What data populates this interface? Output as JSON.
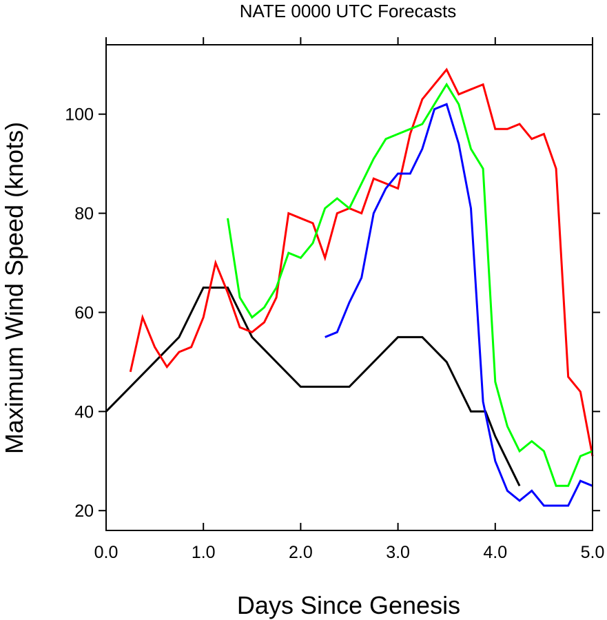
{
  "chart_data": {
    "type": "line",
    "title": "NATE 0000 UTC Forecasts",
    "xlabel": "Days Since Genesis",
    "ylabel": "Maximum Wind Speed (knots)",
    "xlim": [
      0,
      5
    ],
    "ylim": [
      16,
      114
    ],
    "grid": false,
    "x_ticks": [
      {
        "value": 0,
        "label": "0.0"
      },
      {
        "value": 1,
        "label": "1.0"
      },
      {
        "value": 2,
        "label": "2.0"
      },
      {
        "value": 3,
        "label": "3.0"
      },
      {
        "value": 4,
        "label": "4.0"
      },
      {
        "value": 5,
        "label": "5.0"
      }
    ],
    "y_ticks": [
      {
        "value": 20,
        "label": "20"
      },
      {
        "value": 40,
        "label": "40"
      },
      {
        "value": 60,
        "label": "60"
      },
      {
        "value": 80,
        "label": "80"
      },
      {
        "value": 100,
        "label": "100"
      }
    ],
    "series": [
      {
        "color": "#000000",
        "points": [
          [
            0,
            40
          ],
          [
            0.25,
            45
          ],
          [
            0.5,
            50
          ],
          [
            0.75,
            55
          ],
          [
            1.0,
            65
          ],
          [
            1.25,
            65
          ],
          [
            1.5,
            55
          ],
          [
            1.75,
            50
          ],
          [
            2.0,
            45
          ],
          [
            2.25,
            45
          ],
          [
            2.5,
            45
          ],
          [
            2.75,
            50
          ],
          [
            3.0,
            55
          ],
          [
            3.25,
            55
          ],
          [
            3.5,
            50
          ],
          [
            3.75,
            40
          ],
          [
            3.9,
            40
          ],
          [
            4.0,
            35
          ],
          [
            4.25,
            25
          ]
        ]
      },
      {
        "color": "#ff0000",
        "points": [
          [
            0.25,
            48
          ],
          [
            0.375,
            59
          ],
          [
            0.5,
            53
          ],
          [
            0.625,
            49
          ],
          [
            0.75,
            52
          ],
          [
            0.875,
            53
          ],
          [
            1.0,
            59
          ],
          [
            1.125,
            70
          ],
          [
            1.25,
            64
          ],
          [
            1.375,
            57
          ],
          [
            1.5,
            56
          ],
          [
            1.625,
            58
          ],
          [
            1.75,
            63
          ],
          [
            1.875,
            80
          ],
          [
            2.0,
            79
          ],
          [
            2.125,
            78
          ],
          [
            2.25,
            71
          ],
          [
            2.375,
            80
          ],
          [
            2.5,
            81
          ],
          [
            2.625,
            80
          ],
          [
            2.75,
            87
          ],
          [
            2.875,
            86
          ],
          [
            3.0,
            85
          ],
          [
            3.125,
            96
          ],
          [
            3.25,
            103
          ],
          [
            3.375,
            106
          ],
          [
            3.5,
            109
          ],
          [
            3.625,
            104
          ],
          [
            3.75,
            105
          ],
          [
            3.875,
            106
          ],
          [
            4.0,
            97
          ],
          [
            4.125,
            97
          ],
          [
            4.25,
            98
          ],
          [
            4.375,
            95
          ],
          [
            4.5,
            96
          ],
          [
            4.625,
            89
          ],
          [
            4.75,
            47
          ],
          [
            4.875,
            44
          ],
          [
            5.0,
            31
          ]
        ]
      },
      {
        "color": "#00ff00",
        "points": [
          [
            1.25,
            79
          ],
          [
            1.375,
            63
          ],
          [
            1.5,
            59
          ],
          [
            1.625,
            61
          ],
          [
            1.75,
            65
          ],
          [
            1.875,
            72
          ],
          [
            2.0,
            71
          ],
          [
            2.125,
            74
          ],
          [
            2.25,
            81
          ],
          [
            2.375,
            83
          ],
          [
            2.5,
            81
          ],
          [
            2.625,
            86
          ],
          [
            2.75,
            91
          ],
          [
            2.875,
            95
          ],
          [
            3.0,
            96
          ],
          [
            3.125,
            97
          ],
          [
            3.25,
            98
          ],
          [
            3.375,
            102
          ],
          [
            3.5,
            106
          ],
          [
            3.625,
            102
          ],
          [
            3.75,
            93
          ],
          [
            3.875,
            89
          ],
          [
            4.0,
            46
          ],
          [
            4.125,
            37
          ],
          [
            4.25,
            32
          ],
          [
            4.375,
            34
          ],
          [
            4.5,
            32
          ],
          [
            4.625,
            25
          ],
          [
            4.75,
            25
          ],
          [
            4.875,
            31
          ],
          [
            5.0,
            32
          ]
        ]
      },
      {
        "color": "#0000ff",
        "points": [
          [
            2.25,
            55
          ],
          [
            2.375,
            56
          ],
          [
            2.5,
            62
          ],
          [
            2.625,
            67
          ],
          [
            2.75,
            80
          ],
          [
            2.875,
            85
          ],
          [
            3.0,
            88
          ],
          [
            3.125,
            88
          ],
          [
            3.25,
            93
          ],
          [
            3.375,
            101
          ],
          [
            3.5,
            102
          ],
          [
            3.625,
            94
          ],
          [
            3.75,
            81
          ],
          [
            3.875,
            42
          ],
          [
            4.0,
            30
          ],
          [
            4.125,
            24
          ],
          [
            4.25,
            22
          ],
          [
            4.375,
            24
          ],
          [
            4.5,
            21
          ],
          [
            4.625,
            21
          ],
          [
            4.75,
            21
          ],
          [
            4.875,
            26
          ],
          [
            5.0,
            25
          ]
        ]
      }
    ]
  }
}
